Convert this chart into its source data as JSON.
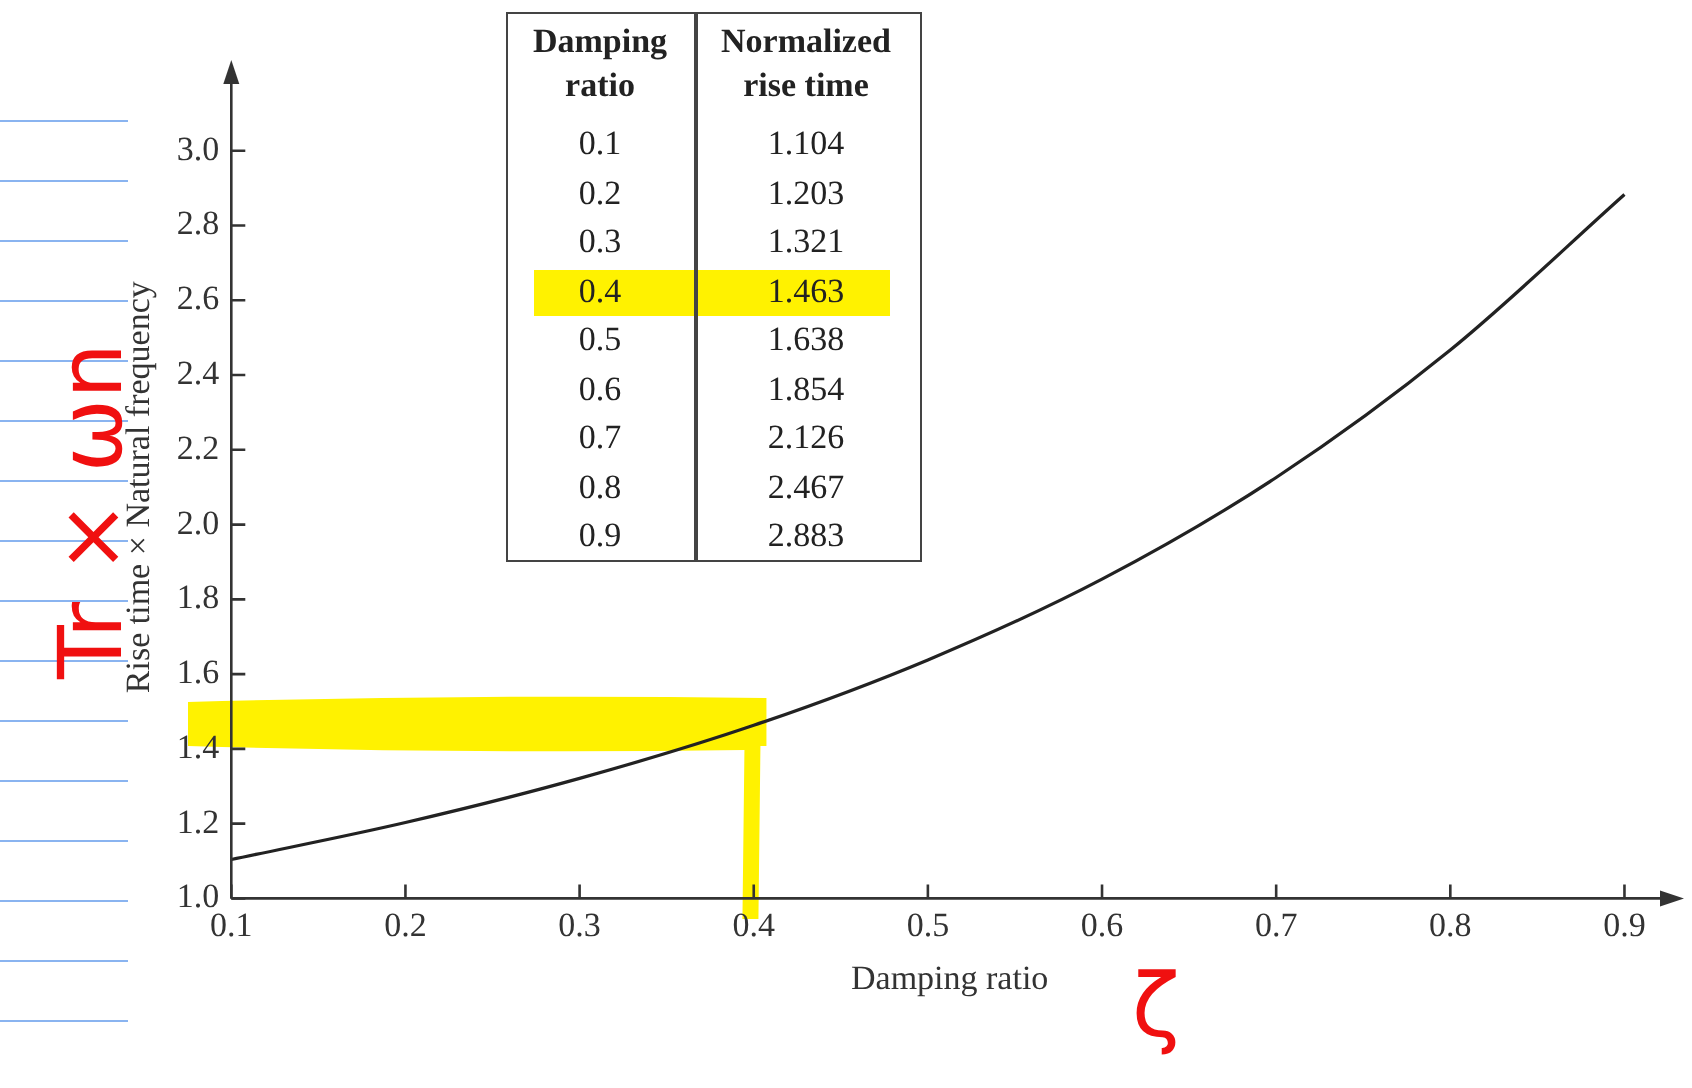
{
  "chart_data": [
    {
      "type": "line",
      "xlabel": "Damping ratio",
      "ylabel": "Rise time × Natural frequency",
      "x": [
        0.1,
        0.2,
        0.3,
        0.4,
        0.5,
        0.6,
        0.7,
        0.8,
        0.9
      ],
      "series": [
        {
          "color": "#222222",
          "values": [
            1.104,
            1.203,
            1.321,
            1.463,
            1.638,
            1.854,
            2.126,
            2.467,
            2.883
          ]
        }
      ],
      "xlim": [
        0.1,
        0.925
      ],
      "ylim": [
        1.0,
        3.2
      ],
      "xticks": [
        0.1,
        0.2,
        0.3,
        0.4,
        0.5,
        0.6,
        0.7,
        0.8,
        0.9
      ],
      "yticks": [
        {
          "value": 1,
          "label": "1.0"
        },
        {
          "value": 1.2,
          "label": "1.2"
        },
        {
          "value": 1.4,
          "label": "1.4"
        },
        {
          "value": 1.6,
          "label": "1.6"
        },
        {
          "value": 1.8,
          "label": "1.8"
        },
        {
          "value": 2,
          "label": "2.0"
        },
        {
          "value": 2.2,
          "label": "2.2"
        },
        {
          "value": 2.4,
          "label": "2.4"
        },
        {
          "value": 2.6,
          "label": "2.6"
        },
        {
          "value": 2.8,
          "label": "2.8"
        },
        {
          "value": 3,
          "label": "3.0"
        }
      ],
      "annotations": [
        "Tr × ωn",
        "ζ"
      ]
    },
    {
      "type": "heatmap",
      "ylabel": "Damping ratio",
      "categories": [
        "Normalized rise time"
      ],
      "y_categories": [
        "0.1",
        "0.2",
        "0.3",
        "0.4",
        "0.5",
        "0.6",
        "0.7",
        "0.8",
        "0.9"
      ],
      "data_labels": true,
      "cells": [
        [
          1.104
        ],
        [
          1.203
        ],
        [
          1.321
        ],
        [
          1.463
        ],
        [
          1.638
        ],
        [
          1.854
        ],
        [
          2.126
        ],
        [
          2.467
        ],
        [
          2.883
        ]
      ]
    }
  ]
}
